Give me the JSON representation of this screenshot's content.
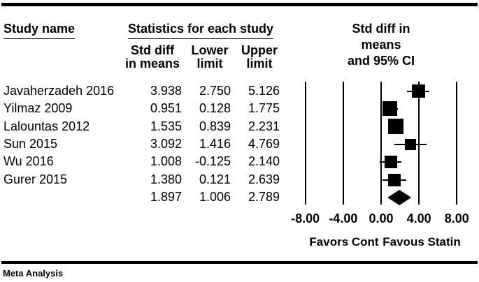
{
  "columns": {
    "study": "Study name",
    "stats_group": "Statistics for each study",
    "sub": {
      "effect": "Std diff\nin means",
      "lower": "Lower\nlimit",
      "upper": "Upper\nlimit"
    },
    "plot": "Std diff in means\nand 95% CI"
  },
  "chart_data": {
    "type": "forest",
    "effect_measure": "Std diff in means",
    "ci_level": "95% CI",
    "studies": [
      {
        "name": "Javaherzadeh 2016",
        "std_diff": "3.938",
        "lower": "2.750",
        "upper": "5.126",
        "marker_size": 19
      },
      {
        "name": "Yilmaz 2009",
        "std_diff": "0.951",
        "lower": "0.128",
        "upper": "1.775",
        "marker_size": 21
      },
      {
        "name": "Lalountas 2012",
        "std_diff": "1.535",
        "lower": "0.839",
        "upper": "2.231",
        "marker_size": 22
      },
      {
        "name": "Sun 2015",
        "std_diff": "3.092",
        "lower": "1.416",
        "upper": "4.769",
        "marker_size": 16
      },
      {
        "name": "Wu 2016",
        "std_diff": "1.008",
        "lower": "-0.125",
        "upper": "2.140",
        "marker_size": 18
      },
      {
        "name": "Gurer 2015",
        "std_diff": "1.380",
        "lower": "0.121",
        "upper": "2.639",
        "marker_size": 18
      }
    ],
    "summary": {
      "std_diff": "1.897",
      "lower": "1.006",
      "upper": "2.789"
    },
    "axis": {
      "xlim": [
        -8,
        8
      ],
      "ticks": [
        -8,
        -4,
        0,
        4,
        8
      ],
      "tick_labels": [
        "-8.00",
        "-4.00",
        "0.00",
        "4.00",
        "8.00"
      ]
    },
    "footers": {
      "left": "Favors Cont",
      "right": "Favous Statin"
    },
    "legend_position": "none",
    "grid": "vertical-ticks-only"
  },
  "footer": {
    "label": "Meta Analysis"
  },
  "colors": {
    "ink": "#000000",
    "background": "#ffffff"
  }
}
